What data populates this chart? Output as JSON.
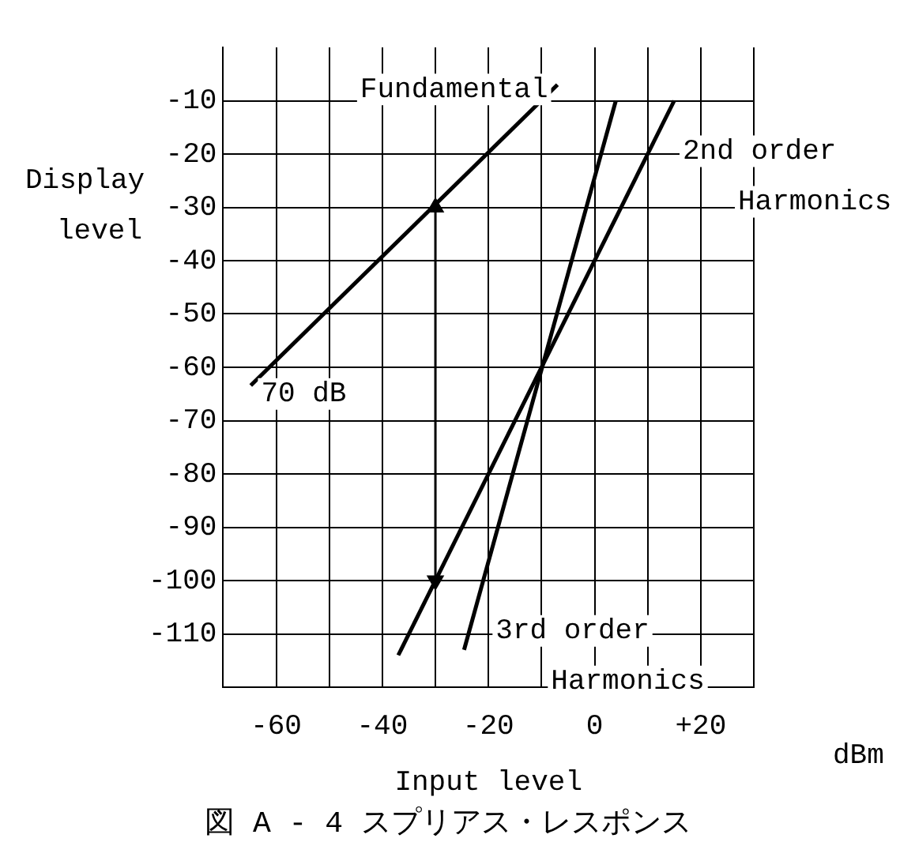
{
  "chart_data": {
    "type": "line",
    "title": "図 A - 4 スプリアス・レスポンス",
    "xlabel": "Input level",
    "ylabel": "Display level",
    "xlim": [
      -70,
      30
    ],
    "ylim": [
      -120,
      0
    ],
    "xticks": [
      {
        "value": -70,
        "label": null
      },
      -60,
      {
        "value": -50,
        "label": null
      },
      -40,
      {
        "value": -30,
        "label": null
      },
      -20,
      {
        "value": -10,
        "label": null
      },
      0,
      {
        "value": 10,
        "label": null
      },
      {
        "value": 20,
        "label": "+20"
      },
      {
        "value": 30,
        "label": null
      }
    ],
    "yticks": [
      {
        "value": -120,
        "label": null
      },
      -110,
      -100,
      -90,
      -80,
      -70,
      -60,
      -50,
      -40,
      -30,
      -20,
      -10
    ],
    "grid": true,
    "marker": "none",
    "line_style": "solid",
    "series": [
      {
        "name": "Fundamental",
        "color": "#000000",
        "x": [
          -64.8,
          -7
        ],
        "values": [
          -63.4,
          -7
        ]
      },
      {
        "name": "2nd order Harmonics",
        "color": "#000000",
        "x": [
          -37,
          15
        ],
        "values": [
          -114,
          -10
        ]
      },
      {
        "name": "3rd order Harmonics",
        "color": "#000000",
        "x": [
          -24.6,
          4
        ],
        "values": [
          -113,
          -10
        ]
      },
      {
        "color": "#000000",
        "x": [
          -30,
          -30
        ],
        "values": [
          -30,
          -100
        ],
        "marker": "triangle"
      }
    ],
    "annotations": [
      "70 dB",
      "dBm"
    ]
  }
}
